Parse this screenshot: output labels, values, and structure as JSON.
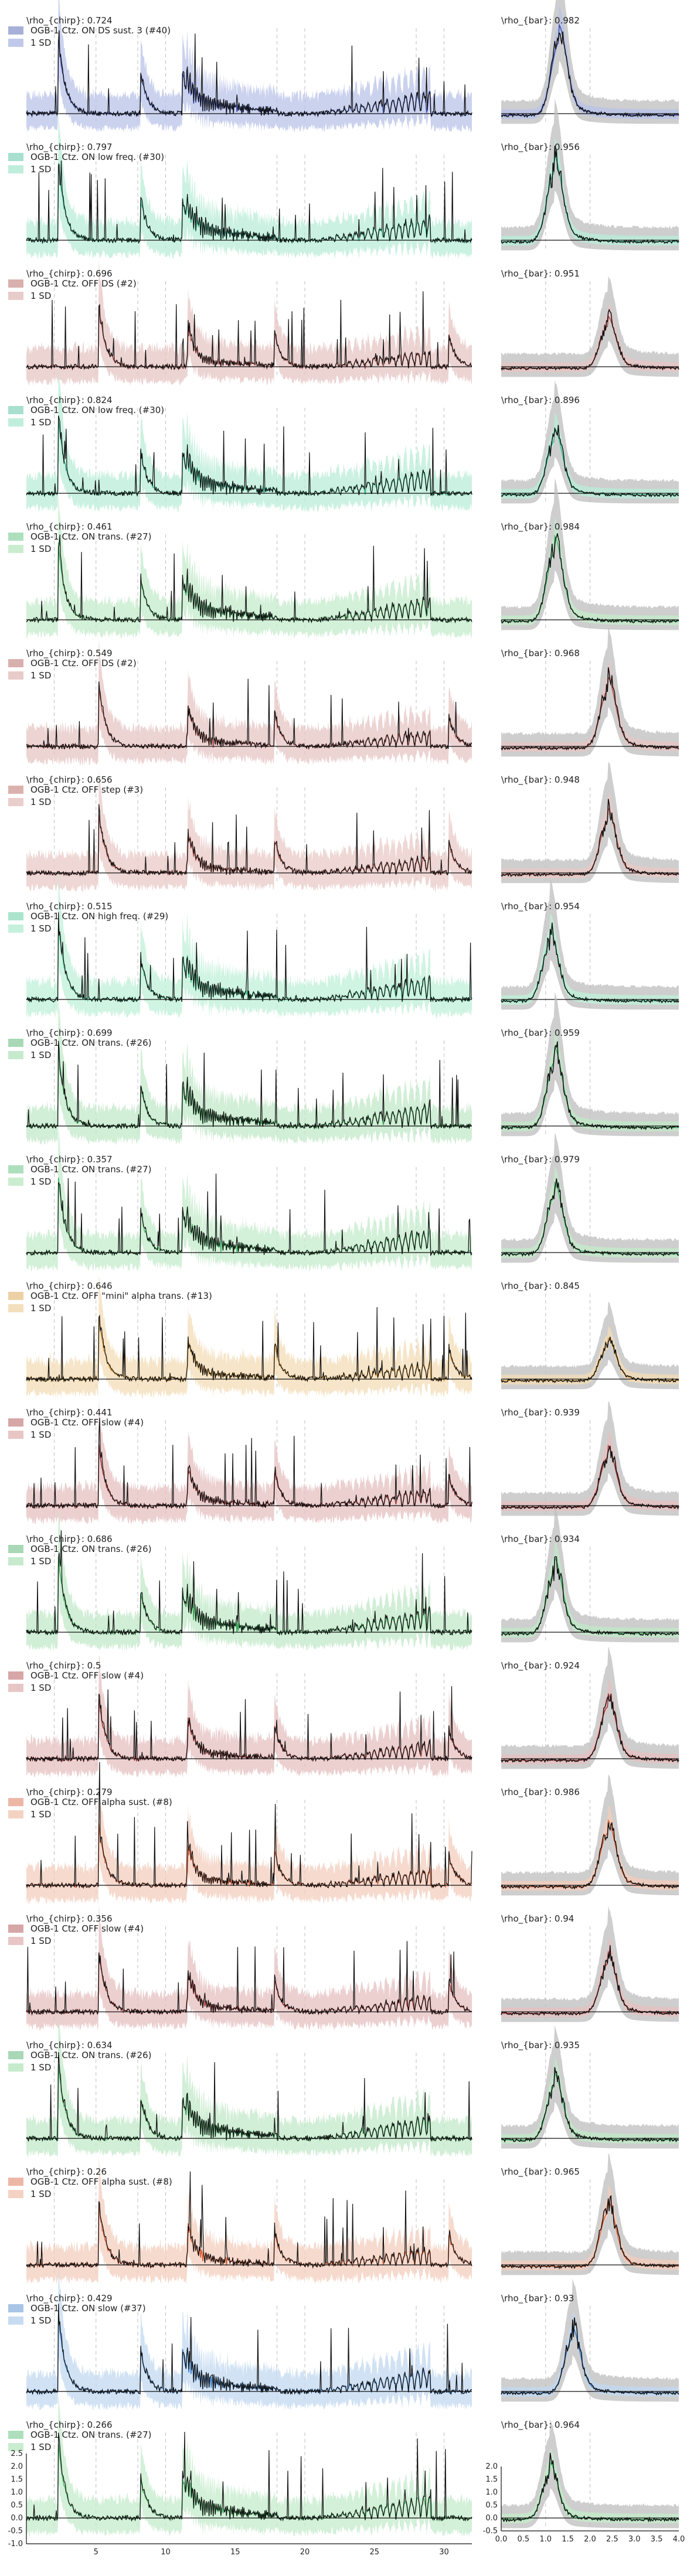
{
  "chart_data": [
    {
      "type": "line",
      "row": 0,
      "left_label": "\\rho_{chirp}: 0.724",
      "right_label": "\\rho_{bar}: 0.982",
      "legend": "OGB-1 Ctz. ON DS sust. 3 (#40)",
      "sd_label": "1 SD",
      "color": "#3b4fa8",
      "fill": "#b9c3e8",
      "bar_peaks": [
        1.3
      ],
      "bar_amp": 0.95
    },
    {
      "type": "line",
      "row": 1,
      "left_label": "\\rho_{chirp}: 0.797",
      "right_label": "\\rho_{bar}: 0.956",
      "legend": "OGB-1 Ctz. ON low freq. (#30)",
      "sd_label": "1 SD",
      "color": "#3fb893",
      "fill": "#b9ecd8",
      "bar_peaks": [
        1.2
      ],
      "bar_amp": 0.9
    },
    {
      "type": "line",
      "row": 2,
      "left_label": "\\rho_{chirp}: 0.696",
      "right_label": "\\rho_{bar}: 0.951",
      "legend": "OGB-1 Ctz. OFF DS (#2)",
      "sd_label": "1 SD",
      "color": "#a8504a",
      "fill": "#e6c6c4",
      "bar_peaks": [
        2.4
      ],
      "bar_amp": 0.55
    },
    {
      "type": "line",
      "row": 3,
      "left_label": "\\rho_{chirp}: 0.824",
      "right_label": "\\rho_{bar}: 0.896",
      "legend": "OGB-1 Ctz. ON low freq. (#30)",
      "sd_label": "1 SD",
      "color": "#3fb893",
      "fill": "#b9ecd8",
      "bar_peaks": [
        1.2
      ],
      "bar_amp": 0.7
    },
    {
      "type": "line",
      "row": 4,
      "left_label": "\\rho_{chirp}: 0.461",
      "right_label": "\\rho_{bar}: 0.984",
      "legend": "OGB-1 Ctz. ON trans. (#27)",
      "sd_label": "1 SD",
      "color": "#4cb86b",
      "fill": "#c4ebcb",
      "bar_peaks": [
        1.2
      ],
      "bar_amp": 0.9
    },
    {
      "type": "line",
      "row": 5,
      "left_label": "\\rho_{chirp}: 0.549",
      "right_label": "\\rho_{bar}: 0.968",
      "legend": "OGB-1 Ctz. OFF DS (#2)",
      "sd_label": "1 SD",
      "color": "#a8504a",
      "fill": "#e6c6c4",
      "bar_peaks": [
        2.4
      ],
      "bar_amp": 0.75
    },
    {
      "type": "line",
      "row": 6,
      "left_label": "\\rho_{chirp}: 0.656",
      "right_label": "\\rho_{bar}: 0.948",
      "legend": "OGB-1 Ctz. OFF step (#3)",
      "sd_label": "1 SD",
      "color": "#b0534c",
      "fill": "#e8c9c6",
      "bar_peaks": [
        2.4
      ],
      "bar_amp": 0.7
    },
    {
      "type": "line",
      "row": 7,
      "left_label": "\\rho_{chirp}: 0.515",
      "right_label": "\\rho_{bar}: 0.954",
      "legend": "OGB-1 Ctz. ON high freq. (#29)",
      "sd_label": "1 SD",
      "color": "#45c48e",
      "fill": "#bff0d8",
      "bar_peaks": [
        1.1
      ],
      "bar_amp": 0.75
    },
    {
      "type": "line",
      "row": 8,
      "left_label": "\\rho_{chirp}: 0.699",
      "right_label": "\\rho_{bar}: 0.959",
      "legend": "OGB-1 Ctz. ON trans. (#26)",
      "sd_label": "1 SD",
      "color": "#3da85a",
      "fill": "#c1e8c8",
      "bar_peaks": [
        1.2
      ],
      "bar_amp": 0.85
    },
    {
      "type": "line",
      "row": 9,
      "left_label": "\\rho_{chirp}: 0.357",
      "right_label": "\\rho_{bar}: 0.979",
      "legend": "OGB-1 Ctz. ON trans. (#27)",
      "sd_label": "1 SD",
      "color": "#4cb86b",
      "fill": "#c4ebcb",
      "bar_peaks": [
        1.2
      ],
      "bar_amp": 0.75
    },
    {
      "type": "line",
      "row": 10,
      "left_label": "\\rho_{chirp}: 0.646",
      "right_label": "\\rho_{bar}: 0.845",
      "legend": "OGB-1 Ctz. OFF \"mini\" alpha trans. (#13)",
      "sd_label": "1 SD",
      "color": "#d89a3a",
      "fill": "#f3dcb6",
      "bar_peaks": [
        2.4
      ],
      "bar_amp": 0.45
    },
    {
      "type": "line",
      "row": 11,
      "left_label": "\\rho_{chirp}: 0.441",
      "right_label": "\\rho_{bar}: 0.939",
      "legend": "OGB-1 Ctz. OFF slow (#4)",
      "sd_label": "1 SD",
      "color": "#a63a3a",
      "fill": "#e6c0c0",
      "bar_peaks": [
        2.4
      ],
      "bar_amp": 0.65
    },
    {
      "type": "line",
      "row": 12,
      "left_label": "\\rho_{chirp}: 0.686",
      "right_label": "\\rho_{bar}: 0.934",
      "legend": "OGB-1 Ctz. ON trans. (#26)",
      "sd_label": "1 SD",
      "color": "#3da85a",
      "fill": "#c1e8c8",
      "bar_peaks": [
        1.2
      ],
      "bar_amp": 0.8
    },
    {
      "type": "line",
      "row": 13,
      "left_label": "\\rho_{chirp}: 0.5",
      "right_label": "\\rho_{bar}: 0.924",
      "legend": "OGB-1 Ctz. OFF slow (#4)",
      "sd_label": "1 SD",
      "color": "#a63a3a",
      "fill": "#e6c0c0",
      "bar_peaks": [
        2.4
      ],
      "bar_amp": 0.7
    },
    {
      "type": "line",
      "row": 14,
      "left_label": "\\rho_{chirp}: 0.279",
      "right_label": "\\rho_{bar}: 0.986",
      "legend": "OGB-1 Ctz. OFF alpha sust. (#8)",
      "sd_label": "1 SD",
      "color": "#d8603a",
      "fill": "#f3cdbd",
      "bar_peaks": [
        2.4
      ],
      "bar_amp": 0.7
    },
    {
      "type": "line",
      "row": 15,
      "left_label": "\\rho_{chirp}: 0.356",
      "right_label": "\\rho_{bar}: 0.94",
      "legend": "OGB-1 Ctz. OFF slow (#4)",
      "sd_label": "1 SD",
      "color": "#a63a3a",
      "fill": "#e6c0c0",
      "bar_peaks": [
        2.4
      ],
      "bar_amp": 0.65
    },
    {
      "type": "line",
      "row": 16,
      "left_label": "\\rho_{chirp}: 0.634",
      "right_label": "\\rho_{bar}: 0.935",
      "legend": "OGB-1 Ctz. ON trans. (#26)",
      "sd_label": "1 SD",
      "color": "#3da85a",
      "fill": "#c1e8c8",
      "bar_peaks": [
        1.2
      ],
      "bar_amp": 0.7
    },
    {
      "type": "line",
      "row": 17,
      "left_label": "\\rho_{chirp}: 0.26",
      "right_label": "\\rho_{bar}: 0.965",
      "legend": "OGB-1 Ctz. OFF alpha sust. (#8)",
      "sd_label": "1 SD",
      "color": "#d8603a",
      "fill": "#f3cdbd",
      "bar_peaks": [
        2.4
      ],
      "bar_amp": 0.7
    },
    {
      "type": "line",
      "row": 18,
      "left_label": "\\rho_{chirp}: 0.429",
      "right_label": "\\rho_{bar}: 0.93",
      "legend": "OGB-1 Ctz. ON slow (#37)",
      "sd_label": "1 SD",
      "color": "#3f7fc8",
      "fill": "#c2d8f0",
      "bar_peaks": [
        1.6
      ],
      "bar_amp": 0.7
    },
    {
      "type": "line",
      "row": 19,
      "left_label": "\\rho_{chirp}: 0.266",
      "right_label": "\\rho_{bar}: 0.964",
      "legend": "OGB-1 Ctz. ON trans. (#27)",
      "sd_label": "1 SD",
      "color": "#4cb86b",
      "fill": "#c4ebcb",
      "bar_peaks": [
        1.1
      ],
      "bar_amp": 0.6
    }
  ],
  "axes": {
    "chirp_x_ticks": [
      "5",
      "10",
      "15",
      "20",
      "25",
      "30"
    ],
    "chirp_y_ticks": [
      "-1.0",
      "-0.5",
      "0.0",
      "0.5",
      "1.0",
      "1.5",
      "2.0",
      "2.5"
    ],
    "bar_x_ticks": [
      "0.0",
      "0.5",
      "1.0",
      "1.5",
      "2.0",
      "2.5",
      "3.0",
      "3.5",
      "4.0"
    ],
    "bar_y_ticks": [
      "-0.5",
      "0.0",
      "0.5",
      "1.0",
      "1.5",
      "2.0"
    ],
    "chirp_xlim": [
      0,
      32
    ],
    "bar_xlim": [
      0,
      4
    ],
    "chirp_vlines": [
      2,
      5,
      8,
      10,
      18,
      20,
      28,
      30
    ],
    "bar_vlines": [
      1,
      2
    ]
  }
}
